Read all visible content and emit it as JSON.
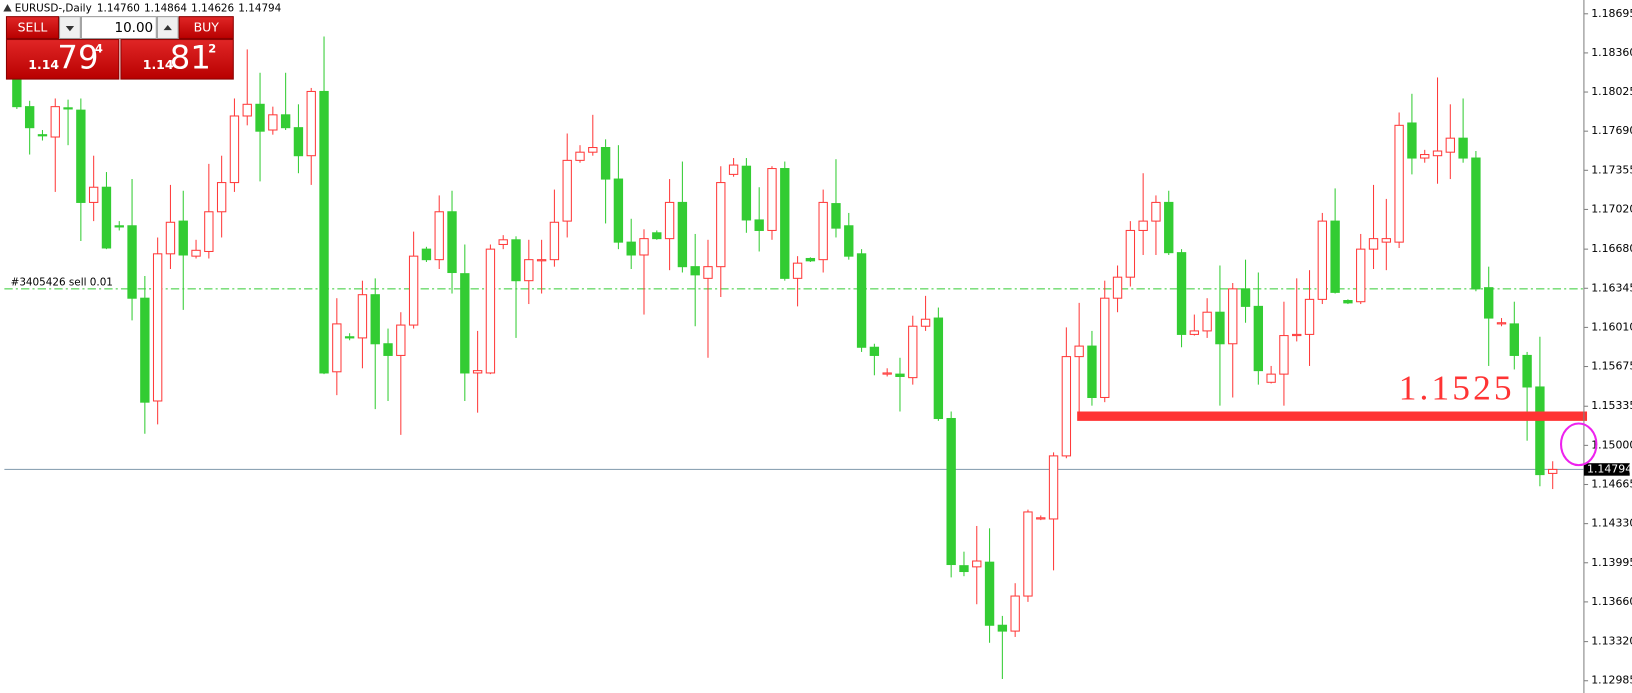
{
  "chart_data": {
    "type": "candlestick",
    "title": "EURUSD-,Daily",
    "header_values": [
      "1.14760",
      "1.14864",
      "1.14626",
      "1.14794"
    ],
    "up_color": "#ff3b3b",
    "down_color": "#33cc33",
    "open": [
      1.1815,
      1.179,
      1.1766,
      1.1764,
      1.1789,
      1.1787,
      1.1708,
      1.1721,
      1.1688,
      1.1688,
      1.1626,
      1.1538,
      1.1664,
      1.1692,
      1.1662,
      1.1666,
      1.17,
      1.1725,
      1.1782,
      1.1792,
      1.177,
      1.1783,
      1.1772,
      1.1748,
      1.1803,
      1.1563,
      1.1593,
      1.1592,
      1.1629,
      1.1587,
      1.1577,
      1.1603,
      1.1668,
      1.1659,
      1.17,
      1.1647,
      1.1562,
      1.1562,
      1.1672,
      1.1676,
      1.1641,
      1.1658,
      1.1659,
      1.1692,
      1.1744,
      1.1751,
      1.1755,
      1.1728,
      1.1674,
      1.1663,
      1.1682,
      1.1677,
      1.1708,
      1.1653,
      1.1643,
      1.1653,
      1.1732,
      1.1739,
      1.1693,
      1.1684,
      1.1737,
      1.1643,
      1.166,
      1.1659,
      1.1707,
      1.1688,
      1.1664,
      1.1584,
      1.1561,
      1.1561,
      1.1558,
      1.1602,
      1.1609,
      1.1523,
      1.1397,
      1.1396,
      1.14,
      1.1346,
      1.1341,
      1.1371,
      1.1437,
      1.1437,
      1.1491,
      1.1576,
      1.1585,
      1.1541,
      1.1626,
      1.1644,
      1.1684,
      1.1692,
      1.1708,
      1.1665,
      1.1595,
      1.1598,
      1.1614,
      1.1587,
      1.1634,
      1.1619,
      1.1554,
      1.1561,
      1.1594,
      1.1595,
      1.1625,
      1.1692,
      1.1624,
      1.1623,
      1.1668,
      1.1674,
      1.1674,
      1.1776,
      1.1746,
      1.1748,
      1.1751,
      1.1763,
      1.1746,
      1.1635,
      1.1604,
      1.1604,
      1.1577,
      1.155,
      1.1476
    ],
    "high": [
      1.1819,
      1.1795,
      1.177,
      1.1797,
      1.1796,
      1.1797,
      1.1748,
      1.1734,
      1.1692,
      1.1728,
      1.1645,
      1.1678,
      1.1723,
      1.1718,
      1.1676,
      1.1741,
      1.1748,
      1.1797,
      1.1839,
      1.1819,
      1.179,
      1.1819,
      1.1792,
      1.1806,
      1.185,
      1.1626,
      1.1596,
      1.1641,
      1.1643,
      1.16,
      1.1614,
      1.1683,
      1.167,
      1.1714,
      1.1718,
      1.1672,
      1.1598,
      1.1672,
      1.168,
      1.1679,
      1.1676,
      1.1676,
      1.1719,
      1.1767,
      1.1757,
      1.1783,
      1.1762,
      1.1757,
      1.1694,
      1.1685,
      1.1684,
      1.1728,
      1.1743,
      1.1681,
      1.1676,
      1.1739,
      1.1746,
      1.1746,
      1.1721,
      1.1739,
      1.1743,
      1.1662,
      1.1661,
      1.1719,
      1.1745,
      1.1699,
      1.1668,
      1.1587,
      1.1566,
      1.1575,
      1.1611,
      1.1628,
      1.1618,
      1.1529,
      1.1409,
      1.1431,
      1.1429,
      1.1354,
      1.1382,
      1.1445,
      1.144,
      1.1494,
      1.1601,
      1.1622,
      1.1598,
      1.1641,
      1.1654,
      1.1692,
      1.1733,
      1.1714,
      1.1718,
      1.1668,
      1.1612,
      1.1626,
      1.1654,
      1.1639,
      1.1659,
      1.1648,
      1.1568,
      1.1623,
      1.1643,
      1.165,
      1.1699,
      1.172,
      1.1625,
      1.1681,
      1.1723,
      1.1711,
      1.1785,
      1.1801,
      1.1753,
      1.1815,
      1.1792,
      1.1797,
      1.1752,
      1.1653,
      1.1609,
      1.1623,
      1.158,
      1.1593,
      1.14864
    ],
    "low": [
      1.1788,
      1.1749,
      1.1761,
      1.1717,
      1.1757,
      1.1675,
      1.1692,
      1.1668,
      1.1684,
      1.1607,
      1.151,
      1.1518,
      1.1651,
      1.1616,
      1.166,
      1.166,
      1.1678,
      1.1717,
      1.1774,
      1.1726,
      1.1766,
      1.177,
      1.1733,
      1.1723,
      1.1561,
      1.1543,
      1.159,
      1.1566,
      1.1531,
      1.1538,
      1.1509,
      1.16,
      1.1657,
      1.1651,
      1.163,
      1.1538,
      1.1528,
      1.1561,
      1.1668,
      1.1592,
      1.1621,
      1.163,
      1.1653,
      1.1678,
      1.1742,
      1.1748,
      1.169,
      1.1668,
      1.1651,
      1.1612,
      1.1676,
      1.165,
      1.1648,
      1.1602,
      1.1575,
      1.1627,
      1.173,
      1.1682,
      1.1666,
      1.1676,
      1.1641,
      1.1619,
      1.1657,
      1.1648,
      1.1678,
      1.1659,
      1.158,
      1.156,
      1.1559,
      1.1529,
      1.1552,
      1.1598,
      1.1521,
      1.1387,
      1.1388,
      1.1364,
      1.1331,
      1.13,
      1.1336,
      1.1366,
      1.1436,
      1.1393,
      1.1489,
      1.1529,
      1.1534,
      1.1537,
      1.1614,
      1.1636,
      1.1663,
      1.1663,
      1.1663,
      1.1584,
      1.1594,
      1.1592,
      1.1534,
      1.1541,
      1.1605,
      1.1552,
      1.1553,
      1.1534,
      1.1589,
      1.1568,
      1.1621,
      1.163,
      1.1621,
      1.1621,
      1.1651,
      1.165,
      1.1669,
      1.1732,
      1.1742,
      1.1724,
      1.1728,
      1.1742,
      1.1632,
      1.1568,
      1.1602,
      1.1565,
      1.1504,
      1.1465,
      1.14626
    ],
    "close": [
      1.179,
      1.1772,
      1.1765,
      1.179,
      1.1788,
      1.1708,
      1.1721,
      1.1669,
      1.1687,
      1.1626,
      1.1537,
      1.1664,
      1.1691,
      1.1663,
      1.1667,
      1.17,
      1.1725,
      1.1782,
      1.1792,
      1.1769,
      1.1783,
      1.1772,
      1.1748,
      1.1803,
      1.1562,
      1.1604,
      1.1592,
      1.1629,
      1.1587,
      1.1577,
      1.1603,
      1.1662,
      1.1659,
      1.17,
      1.1648,
      1.1562,
      1.1564,
      1.1668,
      1.1676,
      1.1641,
      1.1659,
      1.1659,
      1.1691,
      1.1744,
      1.1751,
      1.1755,
      1.1728,
      1.1674,
      1.1663,
      1.1677,
      1.1677,
      1.1708,
      1.1653,
      1.1646,
      1.1653,
      1.1725,
      1.174,
      1.1693,
      1.1684,
      1.1737,
      1.1643,
      1.1656,
      1.1658,
      1.1708,
      1.1686,
      1.1662,
      1.1584,
      1.1577,
      1.1562,
      1.1559,
      1.1602,
      1.1608,
      1.1523,
      1.1398,
      1.1392,
      1.1401,
      1.1346,
      1.1341,
      1.1371,
      1.1443,
      1.1438,
      1.1491,
      1.1576,
      1.1585,
      1.1541,
      1.1626,
      1.1644,
      1.1684,
      1.1692,
      1.1708,
      1.1665,
      1.1595,
      1.1598,
      1.1614,
      1.1587,
      1.1634,
      1.1619,
      1.1564,
      1.1561,
      1.1594,
      1.1595,
      1.1625,
      1.1692,
      1.1631,
      1.1622,
      1.1668,
      1.1677,
      1.1677,
      1.1774,
      1.1746,
      1.1749,
      1.1752,
      1.1763,
      1.1746,
      1.1634,
      1.1609,
      1.1605,
      1.1577,
      1.155,
      1.1475,
      1.14794
    ],
    "ylim": [
      1.1288,
      1.18813
    ],
    "yticks": [
      1.18695,
      {
        "value": 1.1836,
        "label": "1.18360"
      },
      1.18025,
      {
        "value": 1.1769,
        "label": "1.17690"
      },
      1.17355,
      {
        "value": 1.1702,
        "label": "1.17020"
      },
      {
        "value": 1.1668,
        "label": "1.16680"
      },
      1.16345,
      {
        "value": 1.1601,
        "label": "1.16010"
      },
      1.15675,
      1.15335,
      {
        "value": 1.15,
        "label": "1.15000"
      },
      1.14665,
      {
        "value": 1.1433,
        "label": "1.14330"
      },
      1.13995,
      {
        "value": 1.1366,
        "label": "1.13660"
      },
      {
        "value": 1.1332,
        "label": "1.13320"
      },
      1.12985
    ],
    "last_price": {
      "value": 1.14794,
      "label": "1.14794"
    },
    "order_line": {
      "label": "#3405426 sell 0.01",
      "value": 1.1634,
      "color": "#33cc33"
    },
    "annotation": {
      "value": 1.1525,
      "color": "#ff3333"
    }
  },
  "trade_panel": {
    "sell": "SELL",
    "buy": "BUY",
    "lots": "10.00",
    "sell_price": [
      "1.14",
      "79",
      "4"
    ],
    "buy_price": [
      "1.14",
      "81",
      "2"
    ]
  }
}
